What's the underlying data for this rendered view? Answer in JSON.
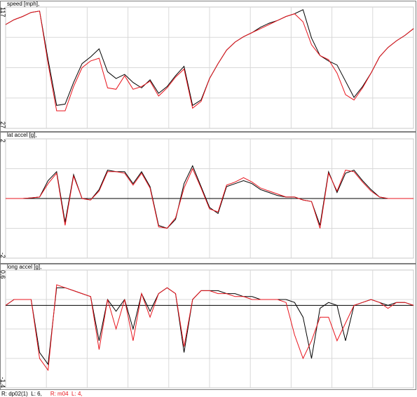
{
  "chart_data": [
    {
      "type": "line",
      "title": "speed [mph],",
      "ylim": [
        27,
        117
      ],
      "yticks": [
        27,
        117
      ],
      "grid": true,
      "series": [
        {
          "color": "#000000",
          "values": [
            104,
            107.6,
            110,
            113,
            114,
            78,
            44,
            45,
            61,
            75,
            80,
            86,
            69,
            64,
            67,
            61,
            57,
            63,
            53,
            58,
            66,
            73,
            44,
            48,
            64,
            75,
            85,
            91,
            95,
            98,
            102,
            105,
            107,
            110,
            112,
            115,
            94,
            81,
            77,
            74,
            62,
            50,
            58,
            68,
            80,
            87,
            92,
            96,
            101
          ]
        },
        {
          "color": "#e8141c",
          "values": [
            104,
            107.6,
            110,
            113,
            114,
            75,
            40,
            40,
            58,
            72,
            77,
            79,
            57,
            56,
            66,
            56,
            58,
            62,
            51,
            57,
            65,
            71,
            42,
            47,
            64,
            75,
            85,
            91,
            95,
            98,
            101,
            104,
            107,
            110,
            112,
            106,
            89,
            81,
            78,
            68,
            52,
            48,
            57,
            68,
            80,
            87,
            92,
            96,
            101
          ]
        }
      ]
    },
    {
      "type": "line",
      "title": "lat accel [g],",
      "ylim": [
        -2,
        2
      ],
      "yticks": [
        -2,
        2
      ],
      "grid": true,
      "hline": 0,
      "series": [
        {
          "color": "#000000",
          "values": [
            0,
            0,
            0,
            0.02,
            0.05,
            0.6,
            0.9,
            -0.8,
            0.8,
            0,
            -0.05,
            0.3,
            0.95,
            0.9,
            0.9,
            0.5,
            0.9,
            0.4,
            -0.9,
            -1.0,
            -0.7,
            0.5,
            1.1,
            0.4,
            -0.3,
            -0.5,
            0.4,
            0.5,
            0.6,
            0.5,
            0.3,
            0.2,
            0.1,
            0.05,
            0.05,
            -0.05,
            -0.1,
            -0.9,
            0.9,
            0.2,
            0.85,
            0.95,
            0.6,
            0.3,
            0.05,
            0,
            0,
            0,
            0
          ]
        },
        {
          "color": "#e8141c",
          "values": [
            0,
            0,
            0,
            0.02,
            0.05,
            0.5,
            0.85,
            -0.9,
            0.75,
            0,
            -0.05,
            0.25,
            0.9,
            0.9,
            0.85,
            0.45,
            0.85,
            0.35,
            -0.95,
            -1.0,
            -0.65,
            0.35,
            1.0,
            0.35,
            -0.35,
            -0.45,
            0.45,
            0.55,
            0.7,
            0.55,
            0.35,
            0.25,
            0.15,
            0.05,
            0.05,
            -0.05,
            -0.1,
            -1.0,
            0.85,
            0.25,
            0.95,
            0.9,
            0.55,
            0.25,
            0.05,
            0,
            0,
            0,
            0
          ]
        }
      ]
    },
    {
      "type": "line",
      "title": "long accel [g],",
      "ylim": [
        -1.4,
        0.6
      ],
      "yticks": [
        -1.4,
        0.6
      ],
      "grid": true,
      "hline": 0,
      "series": [
        {
          "color": "#000000",
          "values": [
            0,
            0.1,
            0.1,
            0.1,
            -0.8,
            -1.0,
            0.3,
            0.3,
            0.25,
            0.2,
            0.15,
            -0.6,
            0.1,
            -0.1,
            0.1,
            -0.4,
            0.2,
            -0.1,
            0.2,
            0.3,
            0.2,
            -0.8,
            0.1,
            0.25,
            0.25,
            0.25,
            0.2,
            0.2,
            0.15,
            0.15,
            0.1,
            0.1,
            0.1,
            0.1,
            0.05,
            -0.2,
            -0.9,
            -0.05,
            0.05,
            0,
            -0.6,
            0,
            0.05,
            0.1,
            0.05,
            0,
            0.05,
            0.05,
            0
          ]
        },
        {
          "color": "#e8141c",
          "values": [
            0,
            0.1,
            0.1,
            0.1,
            -0.9,
            -1.1,
            0.35,
            0.3,
            0.25,
            0.2,
            0.15,
            -0.75,
            0.1,
            -0.4,
            0.1,
            -0.6,
            0.2,
            -0.2,
            0.2,
            0.3,
            0.2,
            -0.7,
            0.1,
            0.25,
            0.25,
            0.2,
            0.2,
            0.15,
            0.15,
            0.1,
            0.1,
            0.1,
            0.1,
            0.05,
            -0.5,
            -0.9,
            -0.6,
            -0.2,
            -0.2,
            -0.6,
            -0.3,
            0,
            0.05,
            0.1,
            0.05,
            -0.05,
            0.05,
            0.05,
            0
          ]
        }
      ]
    }
  ],
  "footer": [
    {
      "text": "R: dp02(1)  L: 6,",
      "color": "#000000"
    },
    {
      "text": "R: m04  L: 4,",
      "color": "#e8141c"
    }
  ]
}
